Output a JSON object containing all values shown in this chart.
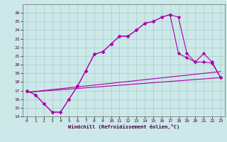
{
  "xlabel": "Windchill (Refroidissement éolien,°C)",
  "bg_color": "#cce8e8",
  "grid_color": "#aacccc",
  "line_color": "#aa00aa",
  "xlim": [
    -0.5,
    23.5
  ],
  "ylim": [
    14,
    27
  ],
  "xticks": [
    0,
    1,
    2,
    3,
    4,
    5,
    6,
    7,
    8,
    9,
    10,
    11,
    12,
    13,
    14,
    15,
    16,
    17,
    18,
    19,
    20,
    21,
    22,
    23
  ],
  "yticks": [
    14,
    15,
    16,
    17,
    18,
    19,
    20,
    21,
    22,
    23,
    24,
    25,
    26
  ],
  "curve1_x": [
    0,
    1,
    2,
    3,
    4,
    5,
    6,
    7,
    8,
    9,
    10,
    11,
    12,
    13,
    14,
    15,
    16,
    17,
    18,
    19,
    20,
    21,
    22,
    23
  ],
  "curve1_y": [
    17.0,
    16.5,
    15.5,
    14.5,
    14.5,
    16.0,
    17.5,
    19.3,
    21.2,
    21.5,
    22.4,
    23.3,
    23.3,
    24.0,
    24.8,
    25.0,
    25.5,
    25.8,
    21.3,
    20.8,
    20.3,
    20.3,
    20.2,
    18.5
  ],
  "curve2_x": [
    0,
    1,
    2,
    3,
    4,
    5,
    6,
    7,
    8,
    9,
    10,
    11,
    12,
    13,
    14,
    15,
    16,
    17,
    18,
    19,
    20,
    21,
    22,
    23
  ],
  "curve2_y": [
    17.0,
    16.5,
    15.5,
    14.5,
    14.5,
    16.0,
    17.5,
    19.3,
    21.2,
    21.5,
    22.4,
    23.3,
    23.3,
    24.0,
    24.8,
    25.0,
    25.5,
    25.8,
    25.5,
    21.3,
    20.3,
    21.3,
    20.3,
    18.5
  ],
  "line3_x": [
    0,
    23
  ],
  "line3_y": [
    16.8,
    19.2
  ],
  "line4_x": [
    0,
    23
  ],
  "line4_y": [
    16.8,
    18.5
  ],
  "markersize": 2.5
}
